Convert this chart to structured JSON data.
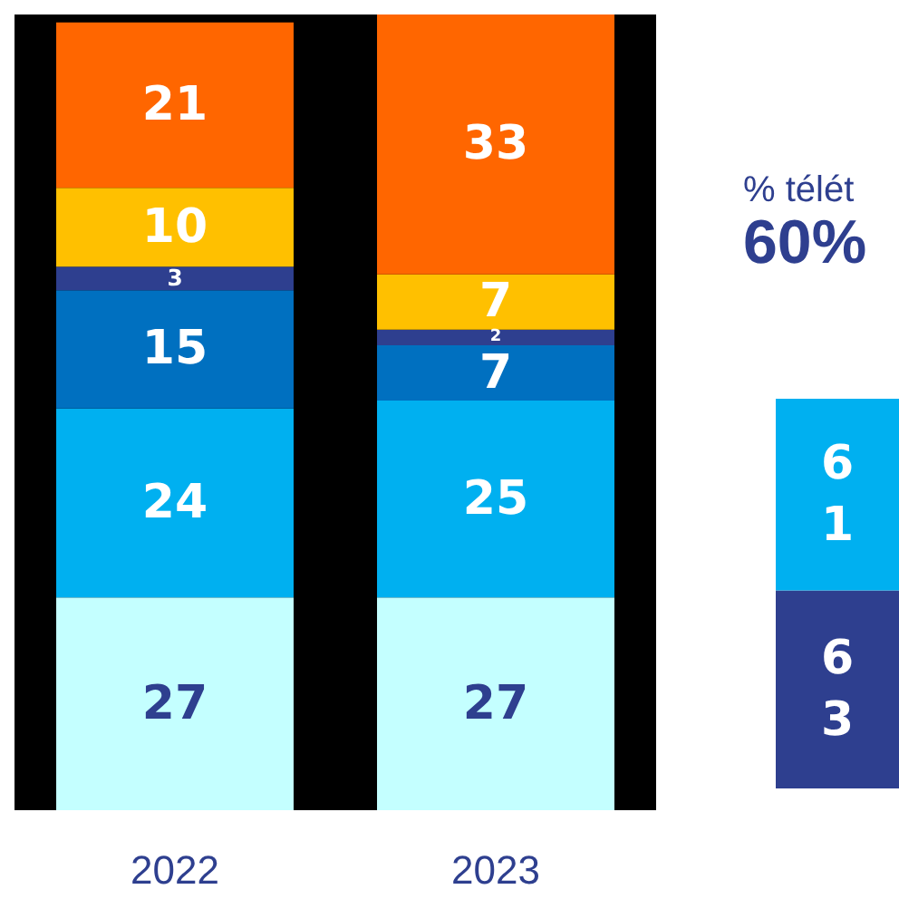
{
  "chart_data": [
    {
      "type": "bar",
      "stacked": true,
      "data_labels": true,
      "categories": [
        "2022",
        "2023"
      ],
      "series": [
        {
          "color": "#c4ffff",
          "values": [
            27,
            27
          ]
        },
        {
          "color": "#00b0f0",
          "values": [
            24,
            25
          ]
        },
        {
          "color": "#0070c0",
          "values": [
            15,
            7
          ]
        },
        {
          "color": "#2e3f8f",
          "values": [
            3,
            2
          ]
        },
        {
          "color": "#ffc000",
          "values": [
            10,
            7
          ]
        },
        {
          "color": "#ff6600",
          "values": [
            21,
            33
          ]
        }
      ]
    },
    {
      "type": "bar",
      "stacked": true,
      "data_labels": true,
      "title": "% télét",
      "subtitle": "60%",
      "categories": [
        null
      ],
      "series": [
        {
          "color": "#2e3f8f",
          "values": [
            63
          ]
        },
        {
          "color": "#00b0f0",
          "values": [
            61
          ]
        }
      ]
    }
  ]
}
